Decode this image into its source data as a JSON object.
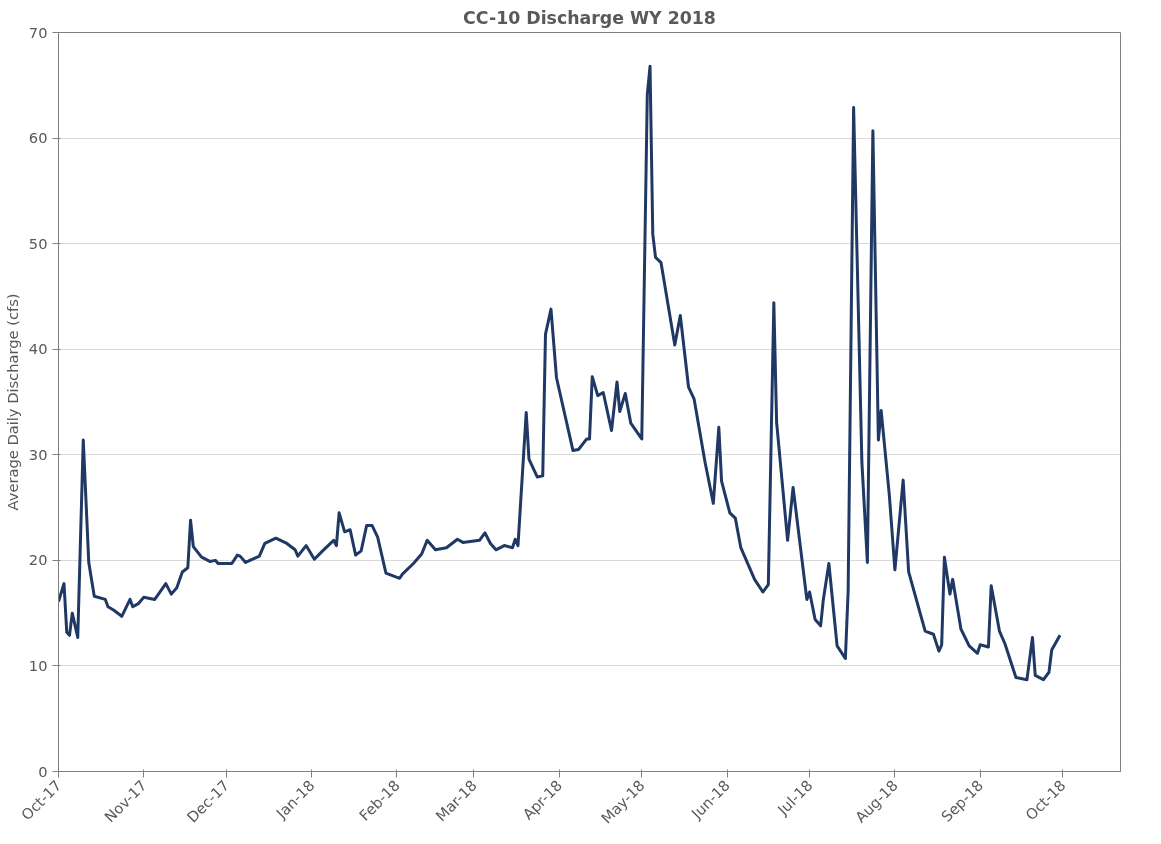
{
  "chart_data": {
    "type": "line",
    "title": "CC-10 Discharge WY 2018",
    "ylabel": "Average Daily Discharge (cfs)",
    "x": [
      "2017-10-01",
      "2017-10-03",
      "2017-10-04",
      "2017-10-05",
      "2017-10-06",
      "2017-10-08",
      "2017-10-10",
      "2017-10-12",
      "2017-10-14",
      "2017-10-18",
      "2017-10-19",
      "2017-10-21",
      "2017-10-24",
      "2017-10-27",
      "2017-10-28",
      "2017-10-30",
      "2017-11-01",
      "2017-11-05",
      "2017-11-09",
      "2017-11-11",
      "2017-11-13",
      "2017-11-15",
      "2017-11-17",
      "2017-11-18",
      "2017-11-19",
      "2017-11-22",
      "2017-11-25",
      "2017-11-27",
      "2017-11-28",
      "2017-12-03",
      "2017-12-05",
      "2017-12-06",
      "2017-12-08",
      "2017-12-13",
      "2017-12-15",
      "2017-12-19",
      "2017-12-23",
      "2017-12-26",
      "2017-12-27",
      "2017-12-30",
      "2018-01-02",
      "2018-01-05",
      "2018-01-09",
      "2018-01-10",
      "2018-01-11",
      "2018-01-13",
      "2018-01-15",
      "2018-01-17",
      "2018-01-19",
      "2018-01-21",
      "2018-01-23",
      "2018-01-25",
      "2018-01-28",
      "2018-02-02",
      "2018-02-03",
      "2018-02-07",
      "2018-02-10",
      "2018-02-12",
      "2018-02-15",
      "2018-02-19",
      "2018-02-23",
      "2018-02-25",
      "2018-03-03",
      "2018-03-05",
      "2018-03-07",
      "2018-03-09",
      "2018-03-12",
      "2018-03-15",
      "2018-03-16",
      "2018-03-17",
      "2018-03-20",
      "2018-03-21",
      "2018-03-24",
      "2018-03-26",
      "2018-03-27",
      "2018-03-29",
      "2018-03-31",
      "2018-04-06",
      "2018-04-08",
      "2018-04-11",
      "2018-04-12",
      "2018-04-13",
      "2018-04-15",
      "2018-04-17",
      "2018-04-20",
      "2018-04-22",
      "2018-04-23",
      "2018-04-25",
      "2018-04-27",
      "2018-05-01",
      "2018-05-03",
      "2018-05-04",
      "2018-05-05",
      "2018-05-06",
      "2018-05-08",
      "2018-05-13",
      "2018-05-15",
      "2018-05-18",
      "2018-05-20",
      "2018-05-24",
      "2018-05-27",
      "2018-05-29",
      "2018-05-30",
      "2018-06-02",
      "2018-06-04",
      "2018-06-06",
      "2018-06-11",
      "2018-06-14",
      "2018-06-16",
      "2018-06-18",
      "2018-06-19",
      "2018-06-23",
      "2018-06-25",
      "2018-06-30",
      "2018-07-01",
      "2018-07-03",
      "2018-07-05",
      "2018-07-06",
      "2018-07-08",
      "2018-07-11",
      "2018-07-14",
      "2018-07-15",
      "2018-07-17",
      "2018-07-20",
      "2018-07-22",
      "2018-07-24",
      "2018-07-26",
      "2018-07-27",
      "2018-07-30",
      "2018-08-01",
      "2018-08-04",
      "2018-08-06",
      "2018-08-12",
      "2018-08-15",
      "2018-08-17",
      "2018-08-18",
      "2018-08-19",
      "2018-08-21",
      "2018-08-22",
      "2018-08-25",
      "2018-08-28",
      "2018-08-31",
      "2018-09-01",
      "2018-09-04",
      "2018-09-05",
      "2018-09-08",
      "2018-09-10",
      "2018-09-14",
      "2018-09-18",
      "2018-09-20",
      "2018-09-21",
      "2018-09-24",
      "2018-09-26",
      "2018-09-27",
      "2018-09-30"
    ],
    "series": [
      {
        "color": "#1f3864",
        "values": [
          16.1,
          17.8,
          13.2,
          12.9,
          15.0,
          12.7,
          31.4,
          19.8,
          16.6,
          16.3,
          15.6,
          15.3,
          14.7,
          16.3,
          15.6,
          15.9,
          16.5,
          16.3,
          17.8,
          16.8,
          17.4,
          18.9,
          19.3,
          23.8,
          21.3,
          20.3,
          19.9,
          20.0,
          19.7,
          19.7,
          20.5,
          20.4,
          19.8,
          20.4,
          21.6,
          22.1,
          21.6,
          21.0,
          20.4,
          21.4,
          20.1,
          20.9,
          21.9,
          21.4,
          24.5,
          22.7,
          22.9,
          20.5,
          20.9,
          23.3,
          23.3,
          22.2,
          18.8,
          18.3,
          18.7,
          19.7,
          20.6,
          21.9,
          21.0,
          21.2,
          22.0,
          21.7,
          21.9,
          22.6,
          21.6,
          21.0,
          21.4,
          21.2,
          22.0,
          21.4,
          34.0,
          29.6,
          27.9,
          28.0,
          41.4,
          43.8,
          37.3,
          30.4,
          30.5,
          31.5,
          31.5,
          37.4,
          35.6,
          35.9,
          32.3,
          36.9,
          34.1,
          35.8,
          33.0,
          31.5,
          64.1,
          66.8,
          50.9,
          48.7,
          48.2,
          40.4,
          43.2,
          36.4,
          35.3,
          29.3,
          25.4,
          32.6,
          27.5,
          24.5,
          24.0,
          21.2,
          18.2,
          17.0,
          17.7,
          44.4,
          33.1,
          21.9,
          26.9,
          16.3,
          17.0,
          14.4,
          13.8,
          16.3,
          19.7,
          11.9,
          10.7,
          17.0,
          62.9,
          29.3,
          19.8,
          60.7,
          31.4,
          34.2,
          26.1,
          19.1,
          27.6,
          18.9,
          13.3,
          13.0,
          11.4,
          12.0,
          20.3,
          16.8,
          18.2,
          13.5,
          11.9,
          11.2,
          12.0,
          11.8,
          17.6,
          13.3,
          12.1,
          8.9,
          8.7,
          12.7,
          9.1,
          8.7,
          9.4,
          11.5,
          12.9
        ]
      }
    ],
    "xlim": [
      "2017-10-01",
      "2018-10-22"
    ],
    "xticks": [
      {
        "value": "2017-10-01",
        "label": "Oct-17"
      },
      {
        "value": "2017-11-01",
        "label": "Nov-17"
      },
      {
        "value": "2017-12-01",
        "label": "Dec-17"
      },
      {
        "value": "2018-01-01",
        "label": "Jan-18"
      },
      {
        "value": "2018-02-01",
        "label": "Feb-18"
      },
      {
        "value": "2018-03-01",
        "label": "Mar-18"
      },
      {
        "value": "2018-04-01",
        "label": "Apr-18"
      },
      {
        "value": "2018-05-01",
        "label": "May-18"
      },
      {
        "value": "2018-06-01",
        "label": "Jun-18"
      },
      {
        "value": "2018-07-01",
        "label": "Jul-18"
      },
      {
        "value": "2018-08-01",
        "label": "Aug-18"
      },
      {
        "value": "2018-09-01",
        "label": "Sep-18"
      },
      {
        "value": "2018-10-01",
        "label": "Oct-18"
      }
    ],
    "ylim": [
      0,
      70
    ],
    "yticks": [
      0,
      10,
      20,
      30,
      40,
      50,
      60,
      70
    ],
    "grid": "y"
  }
}
